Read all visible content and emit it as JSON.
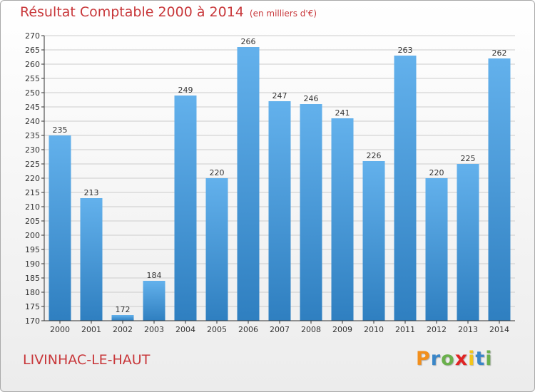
{
  "header": {
    "title": "Résultat Comptable 2000 à 2014",
    "subtitle": "(en milliers d'€)"
  },
  "footer": {
    "commune": "LIVINHAC-LE-HAUT",
    "logo_letters": [
      "P",
      "r",
      "o",
      "x",
      "i",
      "t",
      "i"
    ],
    "logo_colors": [
      "#f28f1c",
      "#3a86c8",
      "#6ab04c",
      "#e02424",
      "#f2c51c",
      "#3a86c8",
      "#6ab04c"
    ]
  },
  "colors": {
    "title": "#c8373a",
    "bar_light": "#63b1ec",
    "bar_dark": "#2f7fc0",
    "grid": "#cccccc",
    "axis": "#333333"
  },
  "chart_data": {
    "type": "bar",
    "categories": [
      "2000",
      "2001",
      "2002",
      "2003",
      "2004",
      "2005",
      "2006",
      "2007",
      "2008",
      "2009",
      "2010",
      "2011",
      "2012",
      "2013",
      "2014"
    ],
    "values": [
      235,
      213,
      172,
      184,
      249,
      220,
      266,
      247,
      246,
      241,
      226,
      263,
      220,
      225,
      262
    ],
    "ylim": [
      170,
      270
    ],
    "yticks": [
      170,
      175,
      180,
      185,
      190,
      195,
      200,
      205,
      210,
      215,
      220,
      225,
      230,
      235,
      240,
      245,
      250,
      255,
      260,
      265,
      270
    ],
    "grid": true,
    "title": "Résultat Comptable 2000 à 2014",
    "xlabel": "",
    "ylabel": ""
  }
}
